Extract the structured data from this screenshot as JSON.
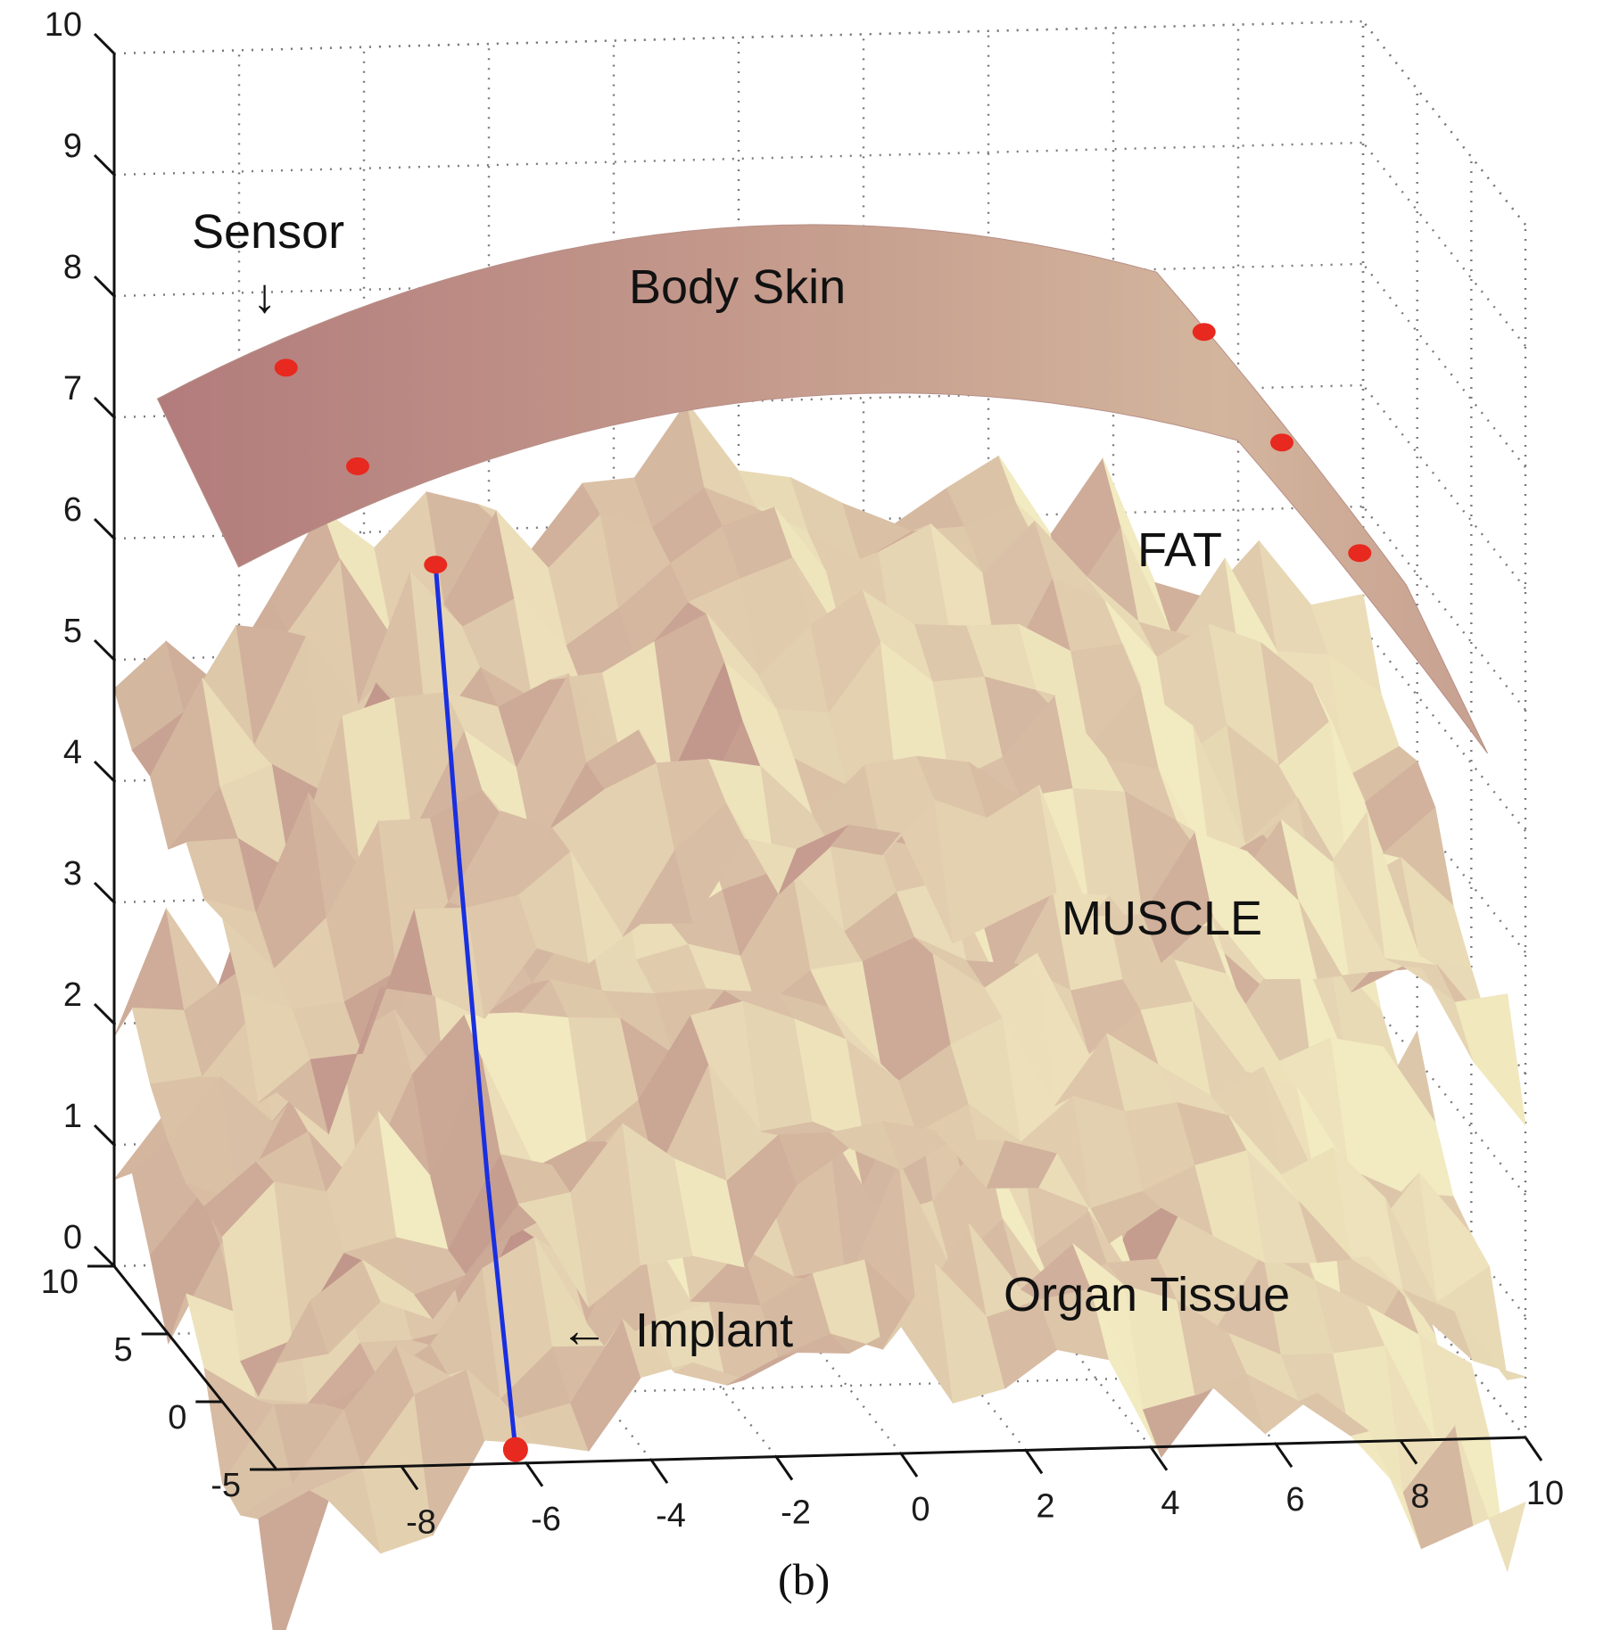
{
  "chart_data": {
    "type": "surface",
    "caption": "(b)",
    "axes": {
      "x": {
        "range": [
          -10,
          10
        ],
        "ticks": [
          -8,
          -6,
          -4,
          -2,
          0,
          2,
          4,
          6,
          8,
          10
        ]
      },
      "y": {
        "range": [
          -5,
          10
        ],
        "ticks": [
          -5,
          0,
          5,
          10
        ]
      },
      "z": {
        "range": [
          0,
          10
        ],
        "ticks": [
          0,
          1,
          2,
          3,
          4,
          5,
          6,
          7,
          8,
          9,
          10
        ]
      }
    },
    "grid": true,
    "layers": [
      {
        "name": "Body Skin",
        "label": "Body Skin",
        "approx_z": 7.5,
        "texture": "smooth",
        "color": "#b78582"
      },
      {
        "name": "FAT",
        "label": "FAT",
        "approx_z": 4.5,
        "texture": "rough",
        "color": "#e9dcb5"
      },
      {
        "name": "MUSCLE",
        "label": "MUSCLE",
        "approx_z": 2.0,
        "texture": "rough",
        "color": "#e6d6b0"
      },
      {
        "name": "Organ Tissue",
        "label": "Organ Tissue",
        "approx_z": 0.5,
        "texture": "rough",
        "color": "#c9a598"
      }
    ],
    "annotations": {
      "sensor": "Sensor",
      "implant": "Implant",
      "sensor_arrow": "↓",
      "implant_arrow": "←"
    },
    "sensor_points": [
      {
        "x": -8.2,
        "y": 4.5,
        "z": 8.0
      },
      {
        "x": -7.4,
        "y": 2.5,
        "z": 7.4
      },
      {
        "x": -6.5,
        "y": 0.5,
        "z": 6.8
      },
      {
        "x": 6.5,
        "y": 4.5,
        "z": 8.1
      },
      {
        "x": 7.4,
        "y": 2.5,
        "z": 7.4
      },
      {
        "x": 8.3,
        "y": 0.5,
        "z": 6.7
      }
    ],
    "implant_point": {
      "x": -6.0,
      "y": -4.0,
      "z": 0.0
    },
    "propagation_path": [
      {
        "x": -6.5,
        "y": 0.5,
        "z": 6.8
      },
      {
        "x": -6.3,
        "y": -0.5,
        "z": 4.5
      },
      {
        "x": -6.1,
        "y": -2.0,
        "z": 2.0
      },
      {
        "x": -6.0,
        "y": -4.0,
        "z": 0.0
      }
    ],
    "colors": {
      "sensor": "#e8291f",
      "path": "#1a2fe0",
      "skin_dark": "#b27c7c",
      "skin_light": "#d6b8a0",
      "tissue_light": "#f2eac0",
      "tissue_dark": "#b98882"
    }
  }
}
